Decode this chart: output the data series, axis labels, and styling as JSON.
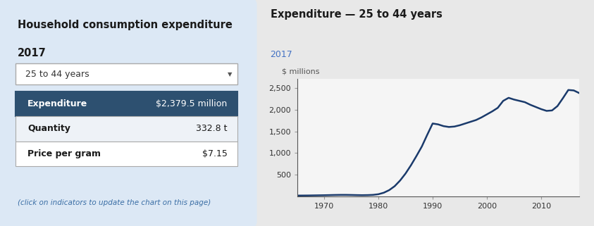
{
  "fig_bg": "#e8e8e8",
  "left_panel_bg": "#dce8f5",
  "left_title_line1": "Household consumption expenditure",
  "left_title_line2": "2017",
  "dropdown_text": "25 to 44 years",
  "table_header_bg": "#2d5070",
  "table_header_text_color": "#ffffff",
  "table_row1_bg": "#eef2f7",
  "table_row2_bg": "#ffffff",
  "table_border_color": "#2d5070",
  "table_rows": [
    {
      "label": "Expenditure",
      "value": "$2,379.5 million",
      "header": true
    },
    {
      "label": "Quantity",
      "value": "332.8 t",
      "header": false
    },
    {
      "label": "Price per gram",
      "value": "$7.15",
      "header": false
    }
  ],
  "footnote": "(click on indicators to update the chart on this page)",
  "chart_title_line1": "Expenditure — 25 to 44 years",
  "chart_title_line2": "2017",
  "chart_ylabel": "$ millions",
  "chart_bg": "#f5f5f5",
  "line_color": "#1a3a6b",
  "line_width": 1.8,
  "x_ticks": [
    1970,
    1980,
    1990,
    2000,
    2010
  ],
  "y_ticks": [
    500,
    1000,
    1500,
    2000,
    2500
  ],
  "ylim": [
    0,
    2700
  ],
  "xlim": [
    1965,
    2017
  ],
  "years": [
    1961,
    1962,
    1963,
    1964,
    1965,
    1966,
    1967,
    1968,
    1969,
    1970,
    1971,
    1972,
    1973,
    1974,
    1975,
    1976,
    1977,
    1978,
    1979,
    1980,
    1981,
    1982,
    1983,
    1984,
    1985,
    1986,
    1987,
    1988,
    1989,
    1990,
    1991,
    1992,
    1993,
    1994,
    1995,
    1996,
    1997,
    1998,
    1999,
    2000,
    2001,
    2002,
    2003,
    2004,
    2005,
    2006,
    2007,
    2008,
    2009,
    2010,
    2011,
    2012,
    2013,
    2014,
    2015,
    2016,
    2017
  ],
  "values": [
    20,
    21,
    22,
    23,
    24,
    25,
    26,
    28,
    30,
    32,
    35,
    38,
    40,
    40,
    38,
    35,
    33,
    35,
    40,
    55,
    90,
    150,
    240,
    370,
    530,
    720,
    930,
    1150,
    1420,
    1680,
    1660,
    1620,
    1600,
    1610,
    1640,
    1680,
    1720,
    1760,
    1820,
    1890,
    1960,
    2040,
    2200,
    2270,
    2230,
    2200,
    2170,
    2110,
    2060,
    2010,
    1970,
    1980,
    2080,
    2260,
    2450,
    2440,
    2380
  ]
}
